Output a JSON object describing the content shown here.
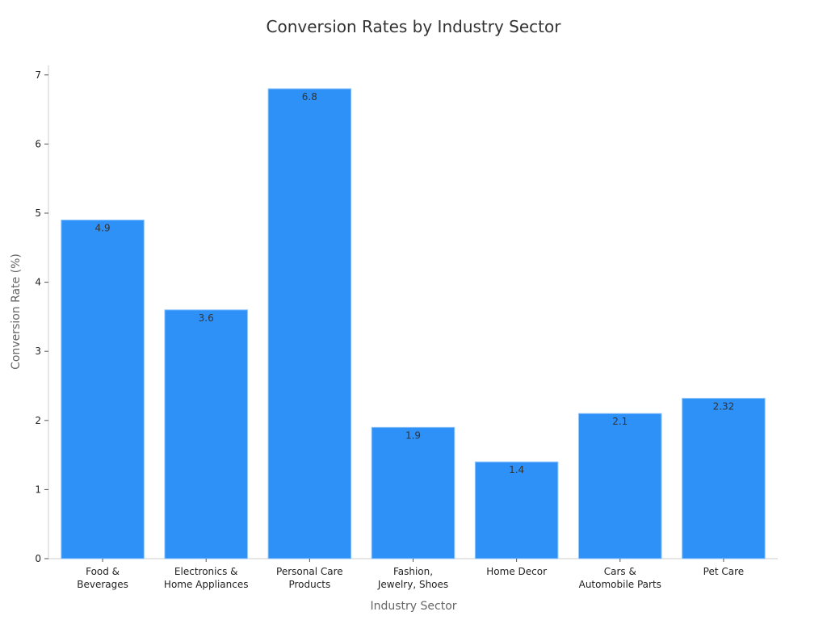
{
  "chart_data": {
    "type": "bar",
    "title": "Conversion Rates by Industry Sector",
    "xlabel": "Industry Sector",
    "ylabel": "Conversion Rate (%)",
    "ylim": [
      0,
      7
    ],
    "yticks": [
      0,
      1,
      2,
      3,
      4,
      5,
      6,
      7
    ],
    "categories": [
      [
        "Food &",
        "Beverages"
      ],
      [
        "Electronics &",
        "Home Appliances"
      ],
      [
        "Personal Care",
        "Products"
      ],
      [
        "Fashion,",
        "Jewelry, Shoes"
      ],
      [
        "Home Decor"
      ],
      [
        "Cars &",
        "Automobile Parts"
      ],
      [
        "Pet Care"
      ]
    ],
    "values": [
      4.9,
      3.6,
      6.8,
      1.9,
      1.4,
      2.1,
      2.32
    ],
    "value_labels": [
      "4.9",
      "3.6",
      "6.8",
      "1.9",
      "1.4",
      "2.1",
      "2.32"
    ],
    "bar_color": "#2e91f8",
    "grid": false,
    "legend": "none"
  }
}
